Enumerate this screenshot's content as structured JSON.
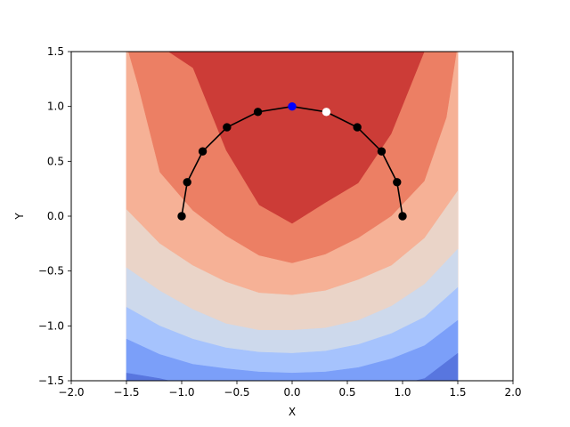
{
  "chart_data": {
    "type": "contour-with-path",
    "title": "",
    "xlabel": "X",
    "ylabel": "Y",
    "xlim": [
      -2.0,
      2.0
    ],
    "ylim": [
      -1.5,
      1.5
    ],
    "x_ticks": [
      "−2.0",
      "−1.5",
      "−1.0",
      "−0.5",
      "0.0",
      "0.5",
      "1.0",
      "1.5",
      "2.0"
    ],
    "x_tick_values": [
      -2.0,
      -1.5,
      -1.0,
      -0.5,
      0.0,
      0.5,
      1.0,
      1.5,
      2.0
    ],
    "y_ticks": [
      "−1.5",
      "−1.0",
      "−0.5",
      "0.0",
      "0.5",
      "1.0",
      "1.5"
    ],
    "y_tick_values": [
      -1.5,
      -1.0,
      -0.5,
      0.0,
      0.5,
      1.0,
      1.5
    ],
    "grid": false,
    "contour": {
      "x_range": [
        -1.5,
        1.5
      ],
      "colormap": "coolwarm",
      "band_colors": [
        "#cc3c37",
        "#ec7f64",
        "#f6b196",
        "#ead4c8",
        "#cdd9ec",
        "#a6c3fd",
        "#7b9ff9",
        "#5876df"
      ],
      "boundaries": [
        {
          "x": [
            -1.5,
            -1.2,
            -0.9,
            -0.6,
            -0.3,
            0.0,
            0.3,
            0.6,
            0.9,
            1.2,
            1.5
          ],
          "y": [
            1.55,
            1.55,
            1.35,
            0.6,
            0.1,
            -0.07,
            0.12,
            0.3,
            0.75,
            1.5,
            1.55
          ]
        },
        {
          "x": [
            -1.5,
            -1.4,
            -1.2,
            -0.9,
            -0.6,
            -0.3,
            0.0,
            0.3,
            0.6,
            0.9,
            1.2,
            1.4,
            1.5
          ],
          "y": [
            1.55,
            1.2,
            0.4,
            0.05,
            -0.18,
            -0.36,
            -0.43,
            -0.35,
            -0.2,
            -0.0,
            0.32,
            0.9,
            1.55
          ]
        },
        {
          "x": [
            -1.5,
            -1.2,
            -0.9,
            -0.6,
            -0.3,
            0.0,
            0.3,
            0.6,
            0.9,
            1.2,
            1.5
          ],
          "y": [
            0.06,
            -0.25,
            -0.45,
            -0.6,
            -0.7,
            -0.72,
            -0.68,
            -0.58,
            -0.45,
            -0.2,
            0.23
          ]
        },
        {
          "x": [
            -1.5,
            -1.2,
            -0.9,
            -0.6,
            -0.3,
            0.0,
            0.3,
            0.6,
            0.9,
            1.2,
            1.5
          ],
          "y": [
            -0.47,
            -0.68,
            -0.85,
            -0.98,
            -1.04,
            -1.04,
            -1.02,
            -0.95,
            -0.82,
            -0.62,
            -0.3
          ]
        },
        {
          "x": [
            -1.5,
            -1.2,
            -0.9,
            -0.6,
            -0.3,
            0.0,
            0.3,
            0.6,
            0.9,
            1.2,
            1.5
          ],
          "y": [
            -0.83,
            -1.0,
            -1.12,
            -1.2,
            -1.24,
            -1.25,
            -1.23,
            -1.17,
            -1.07,
            -0.92,
            -0.65
          ]
        },
        {
          "x": [
            -1.5,
            -1.2,
            -0.9,
            -0.6,
            -0.3,
            0.0,
            0.3,
            0.6,
            0.9,
            1.2,
            1.5
          ],
          "y": [
            -1.12,
            -1.26,
            -1.35,
            -1.39,
            -1.42,
            -1.43,
            -1.42,
            -1.38,
            -1.3,
            -1.18,
            -0.95
          ]
        },
        {
          "x": [
            -1.5,
            -1.2,
            -0.9,
            -0.6,
            -0.3,
            0.0,
            0.3,
            0.6,
            0.9,
            1.2,
            1.5
          ],
          "y": [
            -1.43,
            -1.48,
            -1.55,
            -1.6,
            -1.6,
            -1.6,
            -1.6,
            -1.58,
            -1.55,
            -1.48,
            -1.25
          ]
        }
      ]
    },
    "path": {
      "color": "#000000",
      "x": [
        -1.0,
        -0.95,
        -0.81,
        -0.59,
        -0.31,
        0.0,
        0.31,
        0.59,
        0.81,
        0.95,
        1.0
      ],
      "y": [
        0.0,
        0.31,
        0.59,
        0.81,
        0.95,
        1.0,
        0.95,
        0.81,
        0.59,
        0.31,
        0.0
      ],
      "marker_colors": [
        "#000000",
        "#000000",
        "#000000",
        "#000000",
        "#000000",
        "#0000ff",
        "#ffffff",
        "#000000",
        "#000000",
        "#000000",
        "#000000"
      ]
    }
  }
}
